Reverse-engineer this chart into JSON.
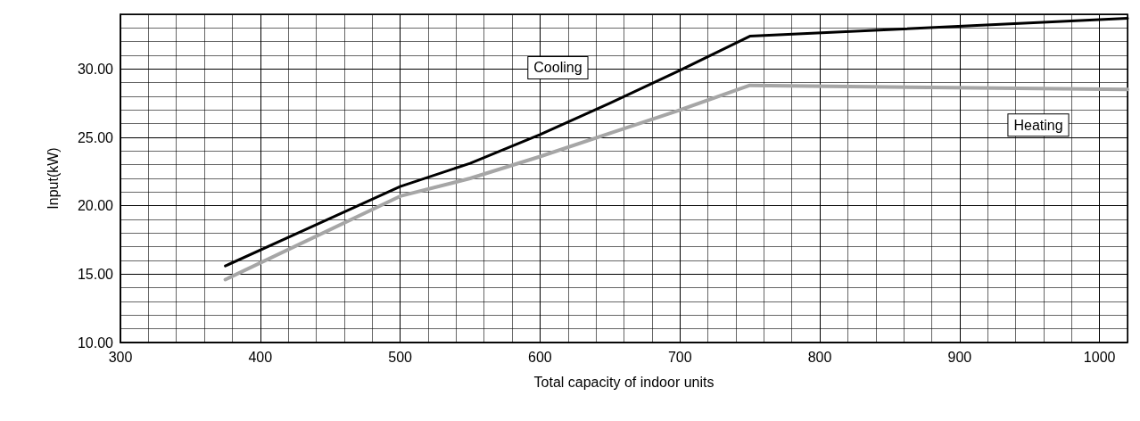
{
  "chart_data": {
    "type": "line",
    "xlabel": "Total capacity of indoor units",
    "ylabel": "Input(kW)",
    "xlim": [
      300,
      1020
    ],
    "xticks": [
      300,
      400,
      500,
      600,
      700,
      800,
      900,
      1000
    ],
    "ylim": [
      10,
      34
    ],
    "yticks": [
      {
        "value": 10,
        "label": "10.00"
      },
      {
        "value": 15,
        "label": "15.00"
      },
      {
        "value": 20,
        "label": "20.00"
      },
      {
        "value": 25,
        "label": "25.00"
      },
      {
        "value": 30,
        "label": "30.00"
      }
    ],
    "grid": true,
    "legend": false,
    "marker": "none",
    "line_style": "solid",
    "series": [
      {
        "name": "Cooling",
        "color": "#000000",
        "x": [
          375,
          500,
          550,
          600,
          650,
          700,
          750,
          1020
        ],
        "values": [
          15.6,
          21.4,
          23.1,
          25.2,
          27.5,
          29.9,
          32.4,
          33.7
        ]
      },
      {
        "name": "Heating",
        "color": "#a6a6a6",
        "x": [
          375,
          500,
          550,
          600,
          650,
          700,
          750,
          1020
        ],
        "values": [
          14.6,
          20.7,
          22.0,
          23.6,
          25.3,
          27.0,
          28.8,
          28.5
        ]
      }
    ]
  }
}
